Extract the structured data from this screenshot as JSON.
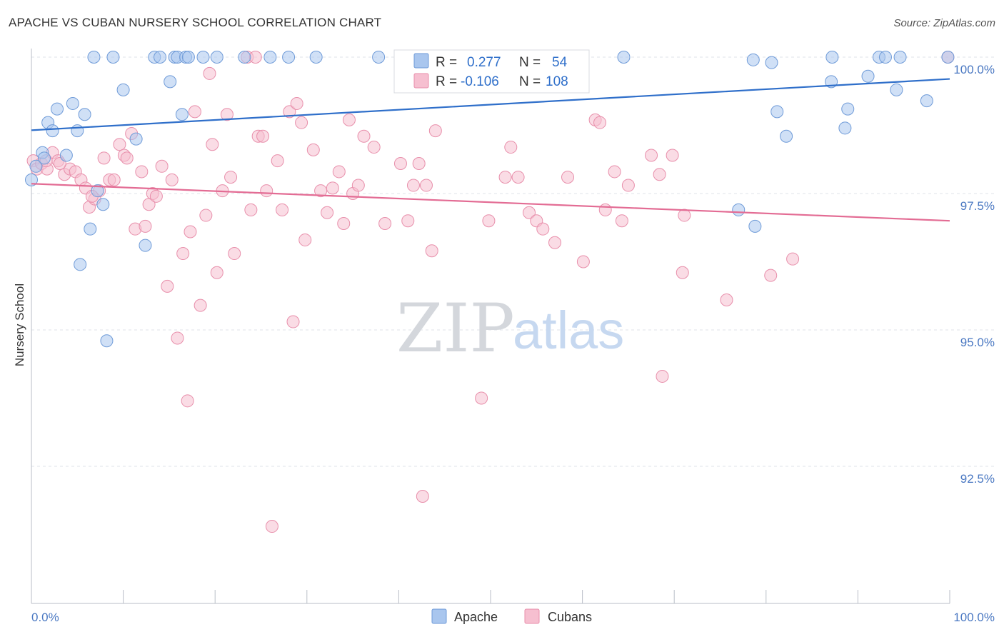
{
  "title": "APACHE VS CUBAN NURSERY SCHOOL CORRELATION CHART",
  "source": "Source: ZipAtlas.com",
  "watermark": {
    "zip": "ZIP",
    "atlas": "atlas"
  },
  "legend": {
    "apache": {
      "r_label": "R =",
      "r_value": "0.277",
      "n_label": "N =",
      "n_value": "54"
    },
    "cubans": {
      "r_label": "R =",
      "r_value": "-0.106",
      "n_label": "N =",
      "n_value": "108"
    }
  },
  "bottom_legend": {
    "apache": "Apache",
    "cubans": "Cubans"
  },
  "colors": {
    "apache_fill": "#a9c6ee",
    "apache_stroke": "#6f9bd8",
    "apache_line": "#2f6fca",
    "cubans_fill": "#f6bfd0",
    "cubans_stroke": "#e88fab",
    "cubans_line": "#e36c94",
    "tick_label": "#4a78c2",
    "grid": "#dfe3ea"
  },
  "chart_data": {
    "type": "scatter",
    "title": "APACHE VS CUBAN NURSERY SCHOOL CORRELATION CHART",
    "xlabel": "",
    "ylabel": "Nursery School",
    "xlim": [
      0,
      100
    ],
    "ylim": [
      90.3,
      100.35
    ],
    "x_tick_labels": {
      "left": "0.0%",
      "right": "100.0%"
    },
    "y_ticks": [
      {
        "value": 100.0,
        "label": "100.0%"
      },
      {
        "value": 97.5,
        "label": "97.5%"
      },
      {
        "value": 95.0,
        "label": "95.0%"
      },
      {
        "value": 92.5,
        "label": "92.5%"
      }
    ],
    "series": [
      {
        "name": "Apache",
        "r": 0.277,
        "n": 54,
        "trend": {
          "x": [
            0,
            100
          ],
          "y": [
            98.66,
            99.6
          ]
        },
        "points": [
          [
            0.0,
            97.75
          ],
          [
            0.5,
            98.0
          ],
          [
            1.2,
            98.25
          ],
          [
            1.8,
            98.8
          ],
          [
            2.3,
            98.65
          ],
          [
            2.8,
            99.05
          ],
          [
            3.8,
            98.2
          ],
          [
            4.5,
            99.15
          ],
          [
            5.0,
            98.65
          ],
          [
            5.8,
            98.95
          ],
          [
            7.2,
            97.55
          ],
          [
            7.8,
            97.3
          ],
          [
            6.4,
            96.85
          ],
          [
            5.3,
            96.2
          ],
          [
            8.2,
            94.8
          ],
          [
            6.8,
            100.0
          ],
          [
            8.9,
            100.0
          ],
          [
            10.0,
            99.4
          ],
          [
            11.4,
            98.5
          ],
          [
            12.4,
            96.55
          ],
          [
            13.4,
            100.0
          ],
          [
            14.0,
            100.0
          ],
          [
            15.1,
            99.55
          ],
          [
            15.6,
            100.0
          ],
          [
            15.9,
            100.0
          ],
          [
            16.4,
            98.95
          ],
          [
            16.8,
            100.0
          ],
          [
            17.1,
            100.0
          ],
          [
            18.7,
            100.0
          ],
          [
            20.2,
            100.0
          ],
          [
            23.2,
            100.0
          ],
          [
            26.0,
            100.0
          ],
          [
            28.0,
            100.0
          ],
          [
            31.0,
            100.0
          ],
          [
            37.8,
            100.0
          ],
          [
            64.5,
            100.0
          ],
          [
            78.6,
            99.95
          ],
          [
            80.6,
            99.9
          ],
          [
            81.2,
            99.0
          ],
          [
            82.2,
            98.55
          ],
          [
            77.0,
            97.2
          ],
          [
            78.8,
            96.9
          ],
          [
            87.1,
            99.55
          ],
          [
            88.6,
            98.7
          ],
          [
            88.9,
            99.05
          ],
          [
            87.2,
            100.0
          ],
          [
            91.1,
            99.65
          ],
          [
            92.3,
            100.0
          ],
          [
            93.0,
            100.0
          ],
          [
            94.2,
            99.4
          ],
          [
            94.6,
            100.0
          ],
          [
            97.5,
            99.2
          ],
          [
            99.8,
            100.0
          ],
          [
            1.4,
            98.15
          ]
        ]
      },
      {
        "name": "Cubans",
        "r": -0.106,
        "n": 108,
        "trend": {
          "x": [
            0,
            100
          ],
          "y": [
            97.68,
            97.0
          ]
        },
        "points": [
          [
            0.2,
            98.1
          ],
          [
            0.6,
            97.95
          ],
          [
            1.1,
            98.05
          ],
          [
            1.7,
            97.95
          ],
          [
            2.3,
            98.25
          ],
          [
            2.9,
            98.1
          ],
          [
            3.6,
            97.85
          ],
          [
            4.2,
            97.95
          ],
          [
            4.8,
            97.9
          ],
          [
            5.4,
            97.75
          ],
          [
            5.9,
            97.6
          ],
          [
            6.3,
            97.25
          ],
          [
            6.9,
            97.4
          ],
          [
            7.4,
            97.55
          ],
          [
            7.9,
            98.15
          ],
          [
            8.5,
            97.75
          ],
          [
            9.0,
            97.75
          ],
          [
            9.6,
            98.4
          ],
          [
            10.1,
            98.2
          ],
          [
            10.4,
            98.15
          ],
          [
            10.9,
            98.6
          ],
          [
            11.3,
            96.85
          ],
          [
            12.0,
            97.9
          ],
          [
            12.4,
            96.9
          ],
          [
            12.8,
            97.3
          ],
          [
            13.2,
            97.5
          ],
          [
            13.6,
            97.45
          ],
          [
            14.2,
            98.0
          ],
          [
            14.8,
            95.8
          ],
          [
            15.3,
            97.75
          ],
          [
            15.9,
            94.85
          ],
          [
            16.5,
            96.4
          ],
          [
            17.0,
            93.7
          ],
          [
            17.3,
            96.8
          ],
          [
            17.8,
            99.0
          ],
          [
            18.4,
            95.45
          ],
          [
            19.0,
            97.1
          ],
          [
            19.4,
            99.7
          ],
          [
            19.7,
            98.4
          ],
          [
            20.2,
            96.05
          ],
          [
            20.8,
            97.55
          ],
          [
            21.3,
            98.95
          ],
          [
            21.7,
            97.8
          ],
          [
            22.1,
            96.4
          ],
          [
            23.5,
            100.0
          ],
          [
            23.9,
            97.2
          ],
          [
            24.4,
            100.0
          ],
          [
            24.7,
            98.55
          ],
          [
            25.2,
            98.55
          ],
          [
            25.6,
            97.55
          ],
          [
            26.2,
            91.4
          ],
          [
            26.8,
            98.1
          ],
          [
            27.3,
            97.2
          ],
          [
            28.1,
            99.0
          ],
          [
            28.5,
            95.15
          ],
          [
            28.9,
            99.15
          ],
          [
            29.4,
            98.8
          ],
          [
            29.8,
            96.65
          ],
          [
            30.7,
            98.3
          ],
          [
            31.5,
            97.55
          ],
          [
            32.2,
            97.15
          ],
          [
            32.8,
            97.6
          ],
          [
            33.5,
            97.9
          ],
          [
            34.0,
            96.95
          ],
          [
            34.6,
            98.85
          ],
          [
            35.0,
            97.5
          ],
          [
            35.6,
            97.65
          ],
          [
            36.2,
            98.55
          ],
          [
            37.3,
            98.35
          ],
          [
            38.5,
            96.95
          ],
          [
            40.2,
            98.05
          ],
          [
            41.0,
            97.0
          ],
          [
            41.6,
            97.65
          ],
          [
            42.2,
            98.05
          ],
          [
            42.6,
            91.95
          ],
          [
            43.0,
            97.65
          ],
          [
            43.6,
            96.45
          ],
          [
            44.0,
            98.65
          ],
          [
            49.8,
            97.0
          ],
          [
            49.0,
            93.75
          ],
          [
            51.6,
            97.8
          ],
          [
            52.2,
            98.35
          ],
          [
            53.0,
            97.8
          ],
          [
            54.2,
            97.15
          ],
          [
            55.0,
            97.0
          ],
          [
            55.7,
            96.85
          ],
          [
            57.0,
            96.6
          ],
          [
            58.4,
            97.8
          ],
          [
            60.1,
            96.25
          ],
          [
            61.4,
            98.85
          ],
          [
            61.9,
            98.8
          ],
          [
            62.5,
            97.2
          ],
          [
            64.3,
            97.0
          ],
          [
            63.5,
            97.9
          ],
          [
            65.0,
            97.65
          ],
          [
            67.5,
            98.2
          ],
          [
            68.4,
            97.85
          ],
          [
            68.7,
            94.15
          ],
          [
            69.8,
            98.2
          ],
          [
            70.9,
            96.05
          ],
          [
            71.1,
            97.1
          ],
          [
            75.7,
            95.55
          ],
          [
            80.5,
            96.0
          ],
          [
            82.9,
            96.3
          ],
          [
            99.8,
            100.0
          ],
          [
            3.1,
            98.05
          ],
          [
            1.6,
            98.1
          ],
          [
            6.6,
            97.45
          ]
        ]
      }
    ]
  }
}
